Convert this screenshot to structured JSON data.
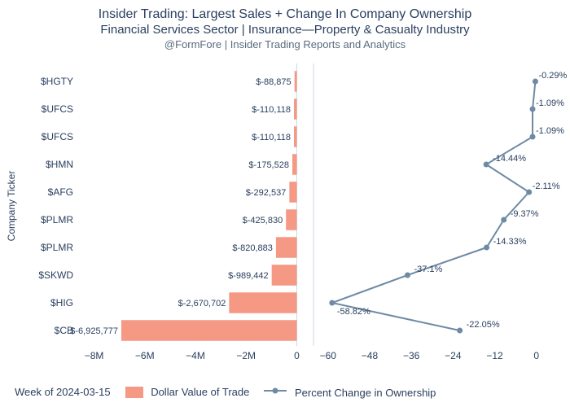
{
  "title_color": "#2a3f5f",
  "text_color": "#2a3f5f",
  "title_main": "Insider Trading: Largest Sales + Change In Company Ownership",
  "title_sub": "Financial Services Sector | Insurance—Property & Casualty Industry",
  "title_src": "@FormFore | Insider Trading Reports and Analytics",
  "title_main_fontsize": 16,
  "title_sub_fontsize": 15,
  "title_src_fontsize": 13,
  "y_axis_label": "Company Ticker",
  "footer_week": "Week of 2024-03-15",
  "legend_bar": "Dollar Value of Trade",
  "legend_line": "Percent Change in Ownership",
  "bar_color": "#f3866f",
  "line_color": "#6f8aa5",
  "axis_color": "#2a3f5f",
  "grid_color": "#ffffff",
  "background_color": "#ffffff",
  "bar_opacity": 0.85,
  "marker_radius": 3.5,
  "line_width": 2,
  "tickers": [
    "$HGTY",
    "$UFCS",
    "$UFCS",
    "$HMN",
    "$AFG",
    "$PLMR",
    "$PLMR",
    "$SKWD",
    "$HIG",
    "$CB"
  ],
  "dollar_values": [
    -88875,
    -110118,
    -110118,
    -175528,
    -292537,
    -425830,
    -820883,
    -989442,
    -2670702,
    -6925777
  ],
  "dollar_value_labels": [
    "$-88,875",
    "$-110,118",
    "$-110,118",
    "$-175,528",
    "$-292,537",
    "$-425,830",
    "$-820,883",
    "$-989,442",
    "$-2,670,702",
    "$-6,925,777"
  ],
  "pct_values": [
    -0.29,
    -1.09,
    -1.09,
    -14.44,
    -2.11,
    -9.37,
    -14.33,
    -37.1,
    -58.82,
    -22.05
  ],
  "pct_labels": [
    "-0.29%",
    "-1.09%",
    "-1.09%",
    "-14.44%",
    "-2.11%",
    "-9.37%",
    "-14.33%",
    "-37.1%",
    "-58.82%",
    "-22.05%"
  ],
  "left_chart": {
    "xmin": -8500000,
    "xmax": 500000,
    "ticks": [
      -8000000,
      -6000000,
      -4000000,
      -2000000,
      0
    ],
    "tick_labels": [
      "−8M",
      "−6M",
      "−4M",
      "−2M",
      "0"
    ]
  },
  "right_chart": {
    "xmin": -63,
    "xmax": 5,
    "ticks": [
      -60,
      -48,
      -36,
      -24,
      -12,
      0
    ],
    "tick_labels": [
      "−60",
      "−48",
      "−36",
      "−24",
      "−12",
      "0"
    ]
  },
  "axis_fontsize": 12,
  "tick_fontsize": 12,
  "value_label_fontsize": 11,
  "bar_width_ratio": 0.75
}
